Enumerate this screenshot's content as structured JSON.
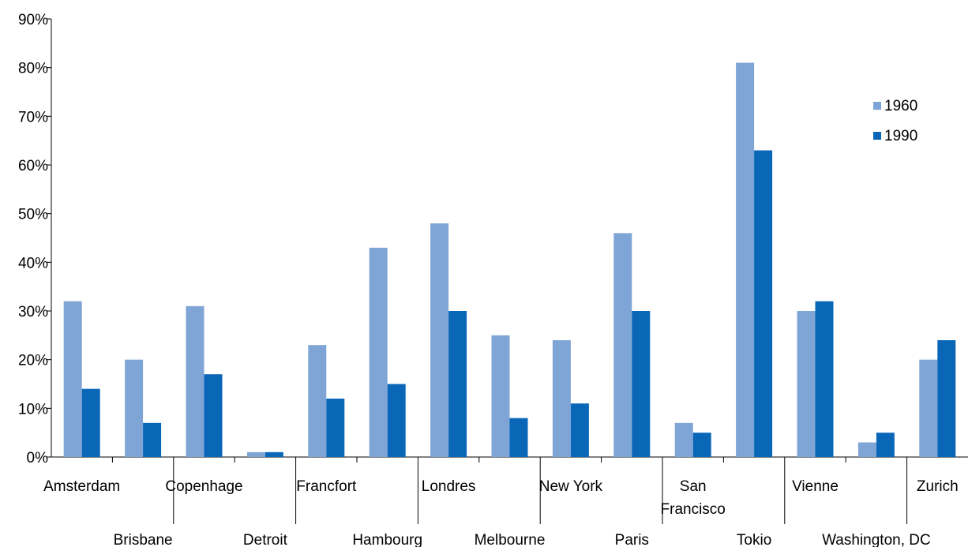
{
  "chart_data": {
    "type": "bar",
    "title": "",
    "xlabel": "",
    "ylabel": "",
    "ylim": [
      0,
      90
    ],
    "yticks": [
      "0%",
      "10%",
      "20%",
      "30%",
      "40%",
      "50%",
      "60%",
      "70%",
      "80%",
      "90%"
    ],
    "grid": false,
    "legend_position": "right",
    "categories": [
      "Amsterdam",
      "Brisbane",
      "Copenhage",
      "Detroit",
      "Francfort",
      "Hambourg",
      "Londres",
      "Melbourne",
      "New York",
      "Paris",
      "San Francisco",
      "Tokio",
      "Vienne",
      "Washington, DC",
      "Zurich"
    ],
    "series": [
      {
        "name": "1960",
        "color": "#7fa5d6",
        "values": [
          32,
          20,
          31,
          1,
          23,
          43,
          48,
          25,
          24,
          46,
          7,
          81,
          30,
          3,
          20
        ]
      },
      {
        "name": "1990",
        "color": "#0a67b8",
        "values": [
          14,
          7,
          17,
          1,
          12,
          15,
          30,
          8,
          11,
          30,
          5,
          63,
          32,
          5,
          24
        ]
      }
    ]
  }
}
